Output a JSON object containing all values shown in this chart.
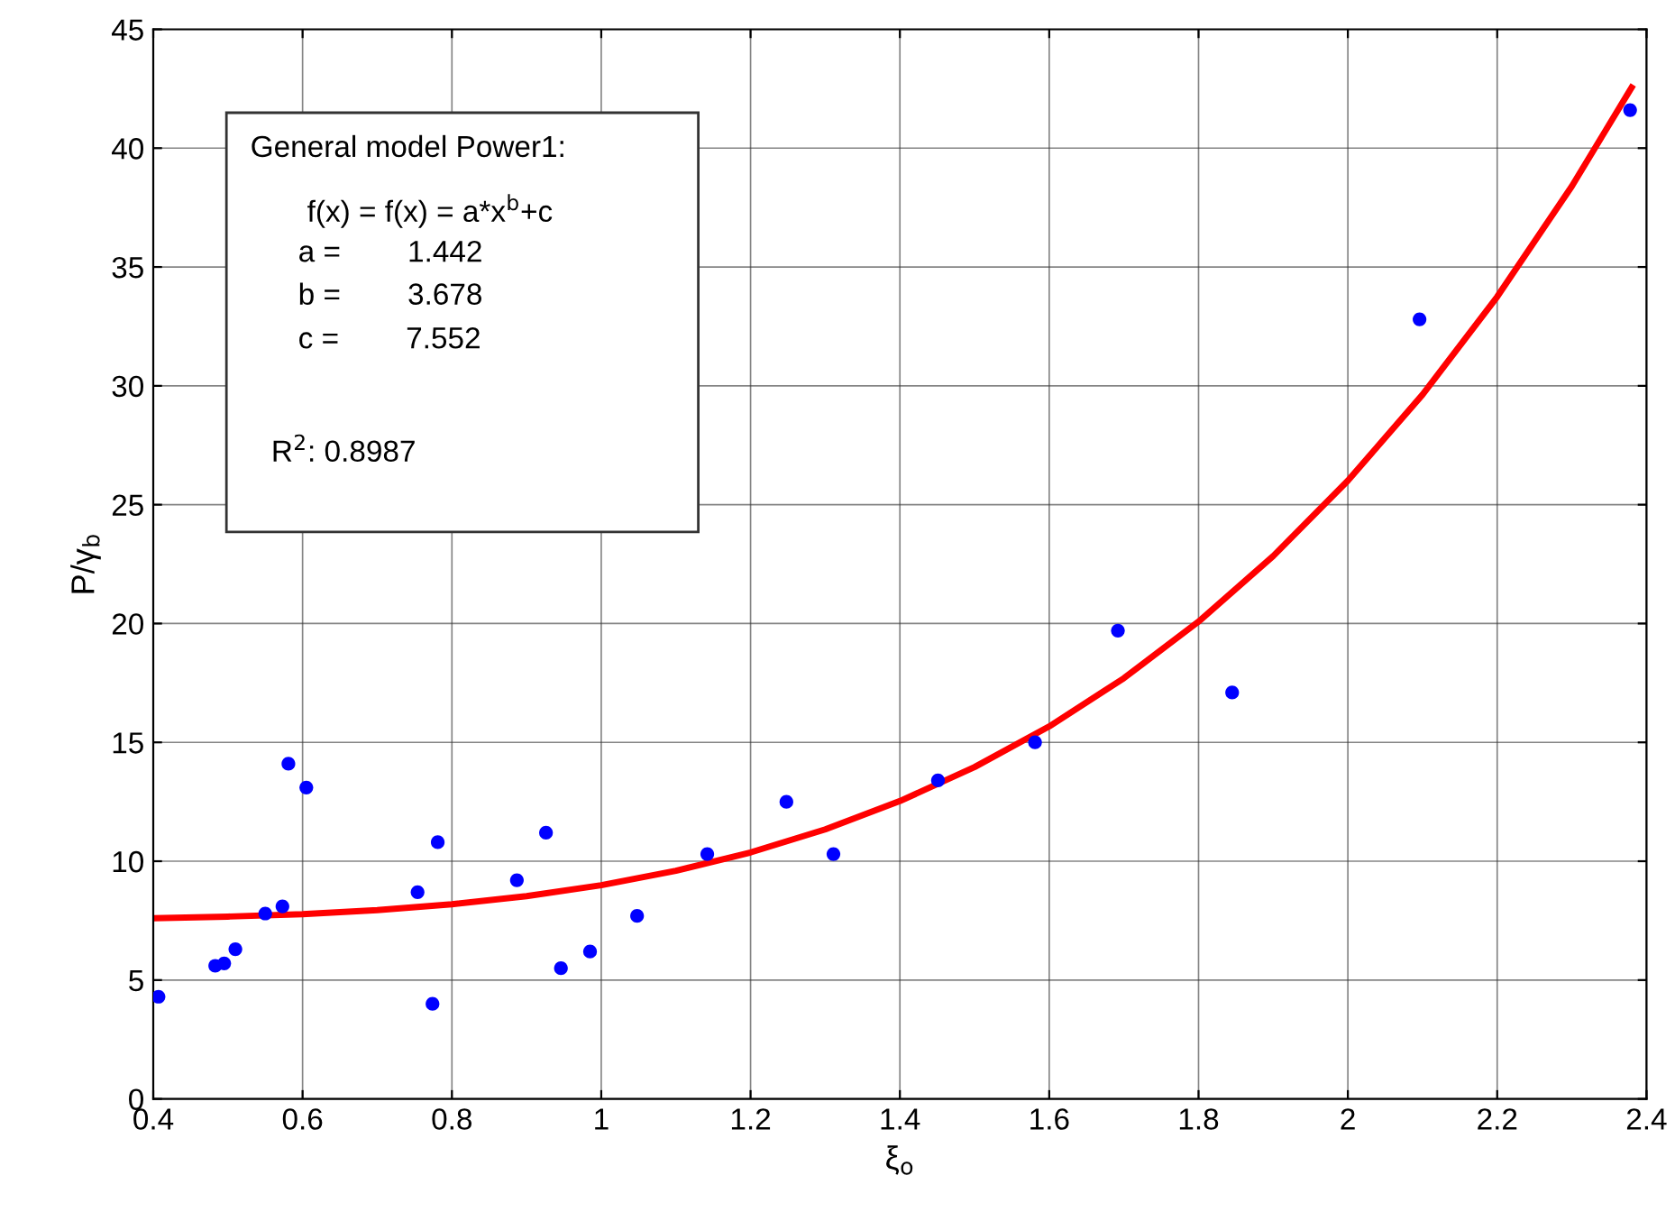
{
  "chart_data": {
    "type": "scatter",
    "xlabel": "ξ$_{o}$",
    "ylabel": "P/γ$_{b}$",
    "xlim": [
      0.4,
      2.4
    ],
    "ylim": [
      0,
      45
    ],
    "xticks": [
      0.4,
      0.6,
      0.8,
      1,
      1.2,
      1.4,
      1.6,
      1.8,
      2,
      2.2,
      2.4
    ],
    "yticks": [
      0,
      5,
      10,
      15,
      20,
      25,
      30,
      35,
      40,
      45
    ],
    "grid": true,
    "annotations": [
      "General model Power1:",
      "f(x) = f(x) = a*x$^{b}$+c",
      "a =        1.442",
      "b =        3.678",
      "c =        7.552",
      "R$^{2}$: 0.8987"
    ],
    "series": [
      {
        "color": "#0000ff",
        "marker": "circle",
        "x": [
          0.407,
          0.483,
          0.495,
          0.51,
          0.55,
          0.573,
          0.581,
          0.605,
          0.754,
          0.774,
          0.781,
          0.887,
          0.926,
          0.946,
          0.985,
          1.048,
          1.142,
          1.248,
          1.311,
          1.451,
          1.581,
          1.692,
          1.845,
          2.096,
          2.378
        ],
        "values": [
          4.3,
          5.6,
          5.7,
          6.3,
          7.8,
          8.1,
          14.1,
          13.1,
          8.7,
          4.0,
          10.8,
          9.2,
          11.2,
          5.5,
          6.2,
          7.7,
          10.3,
          12.5,
          10.3,
          13.4,
          15.0,
          19.7,
          17.1,
          32.8,
          41.6
        ]
      },
      {
        "type": "line",
        "color": "#ff0000",
        "marker": "none",
        "line_style": "solid",
        "x": [
          0.4,
          0.5,
          0.6,
          0.7,
          0.8,
          0.9,
          1.0,
          1.1,
          1.2,
          1.3,
          1.4,
          1.5,
          1.6,
          1.7,
          1.8,
          1.9,
          2.0,
          2.1,
          2.2,
          2.3,
          2.38
        ],
        "values": [
          7.6,
          7.67,
          7.77,
          7.94,
          8.19,
          8.53,
          8.99,
          9.6,
          10.37,
          11.34,
          12.53,
          13.96,
          15.67,
          17.7,
          20.08,
          22.84,
          26.01,
          29.63,
          33.75,
          38.4,
          42.55
        ]
      }
    ]
  }
}
